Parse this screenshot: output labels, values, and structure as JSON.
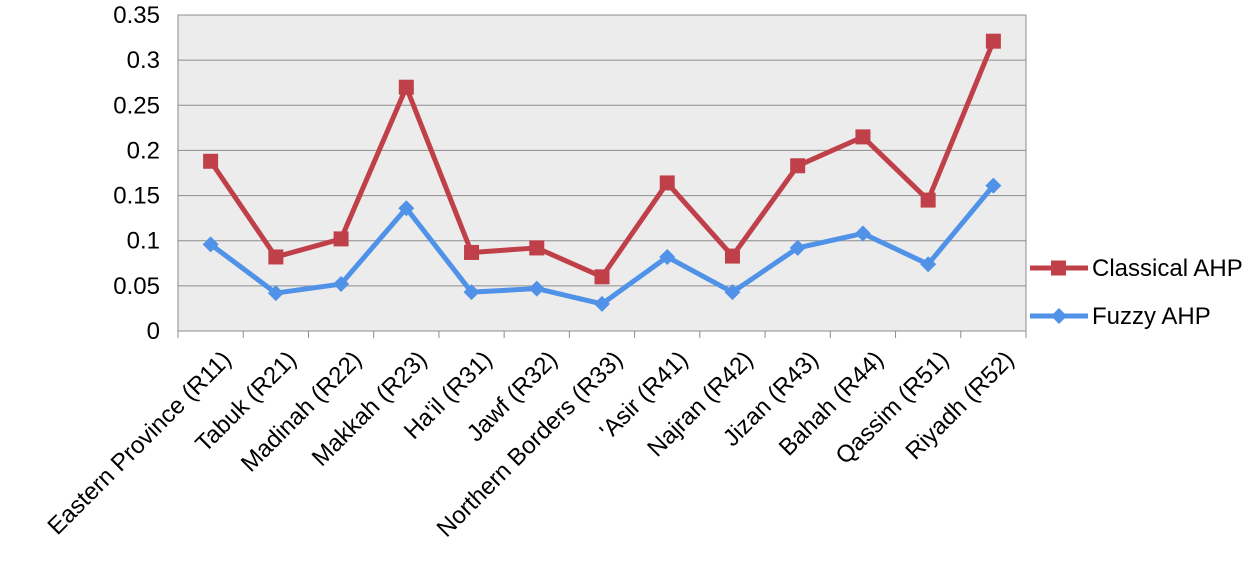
{
  "chart_data": {
    "type": "line",
    "title": "",
    "xlabel": "",
    "ylabel": "",
    "categories": [
      "Eastern Province (R11)",
      "Tabuk (R21)",
      "Madinah (R22)",
      "Makkah (R23)",
      "Ha'il (R31)",
      "Jawf (R32)",
      "Northern Borders (R33)",
      "'Asir (R41)",
      "Najran (R42)",
      "Jizan (R43)",
      "Bahah (R44)",
      "Qassim (R51)",
      "Riyadh (R52)"
    ],
    "series": [
      {
        "name": "Classical AHP",
        "color": "#c0404a",
        "marker": "square",
        "values": [
          0.188,
          0.082,
          0.102,
          0.27,
          0.087,
          0.092,
          0.06,
          0.164,
          0.083,
          0.183,
          0.215,
          0.145,
          0.321
        ]
      },
      {
        "name": "Fuzzy AHP",
        "color": "#4f92e8",
        "marker": "diamond",
        "values": [
          0.096,
          0.042,
          0.052,
          0.136,
          0.043,
          0.047,
          0.03,
          0.082,
          0.043,
          0.092,
          0.108,
          0.074,
          0.161
        ]
      }
    ],
    "ylim": [
      0,
      0.35
    ],
    "yticks": [
      "0",
      "0.05",
      "0.1",
      "0.15",
      "0.2",
      "0.25",
      "0.3",
      "0.35"
    ],
    "grid": true,
    "legend_position": "right",
    "plot_background": "#ececec"
  }
}
